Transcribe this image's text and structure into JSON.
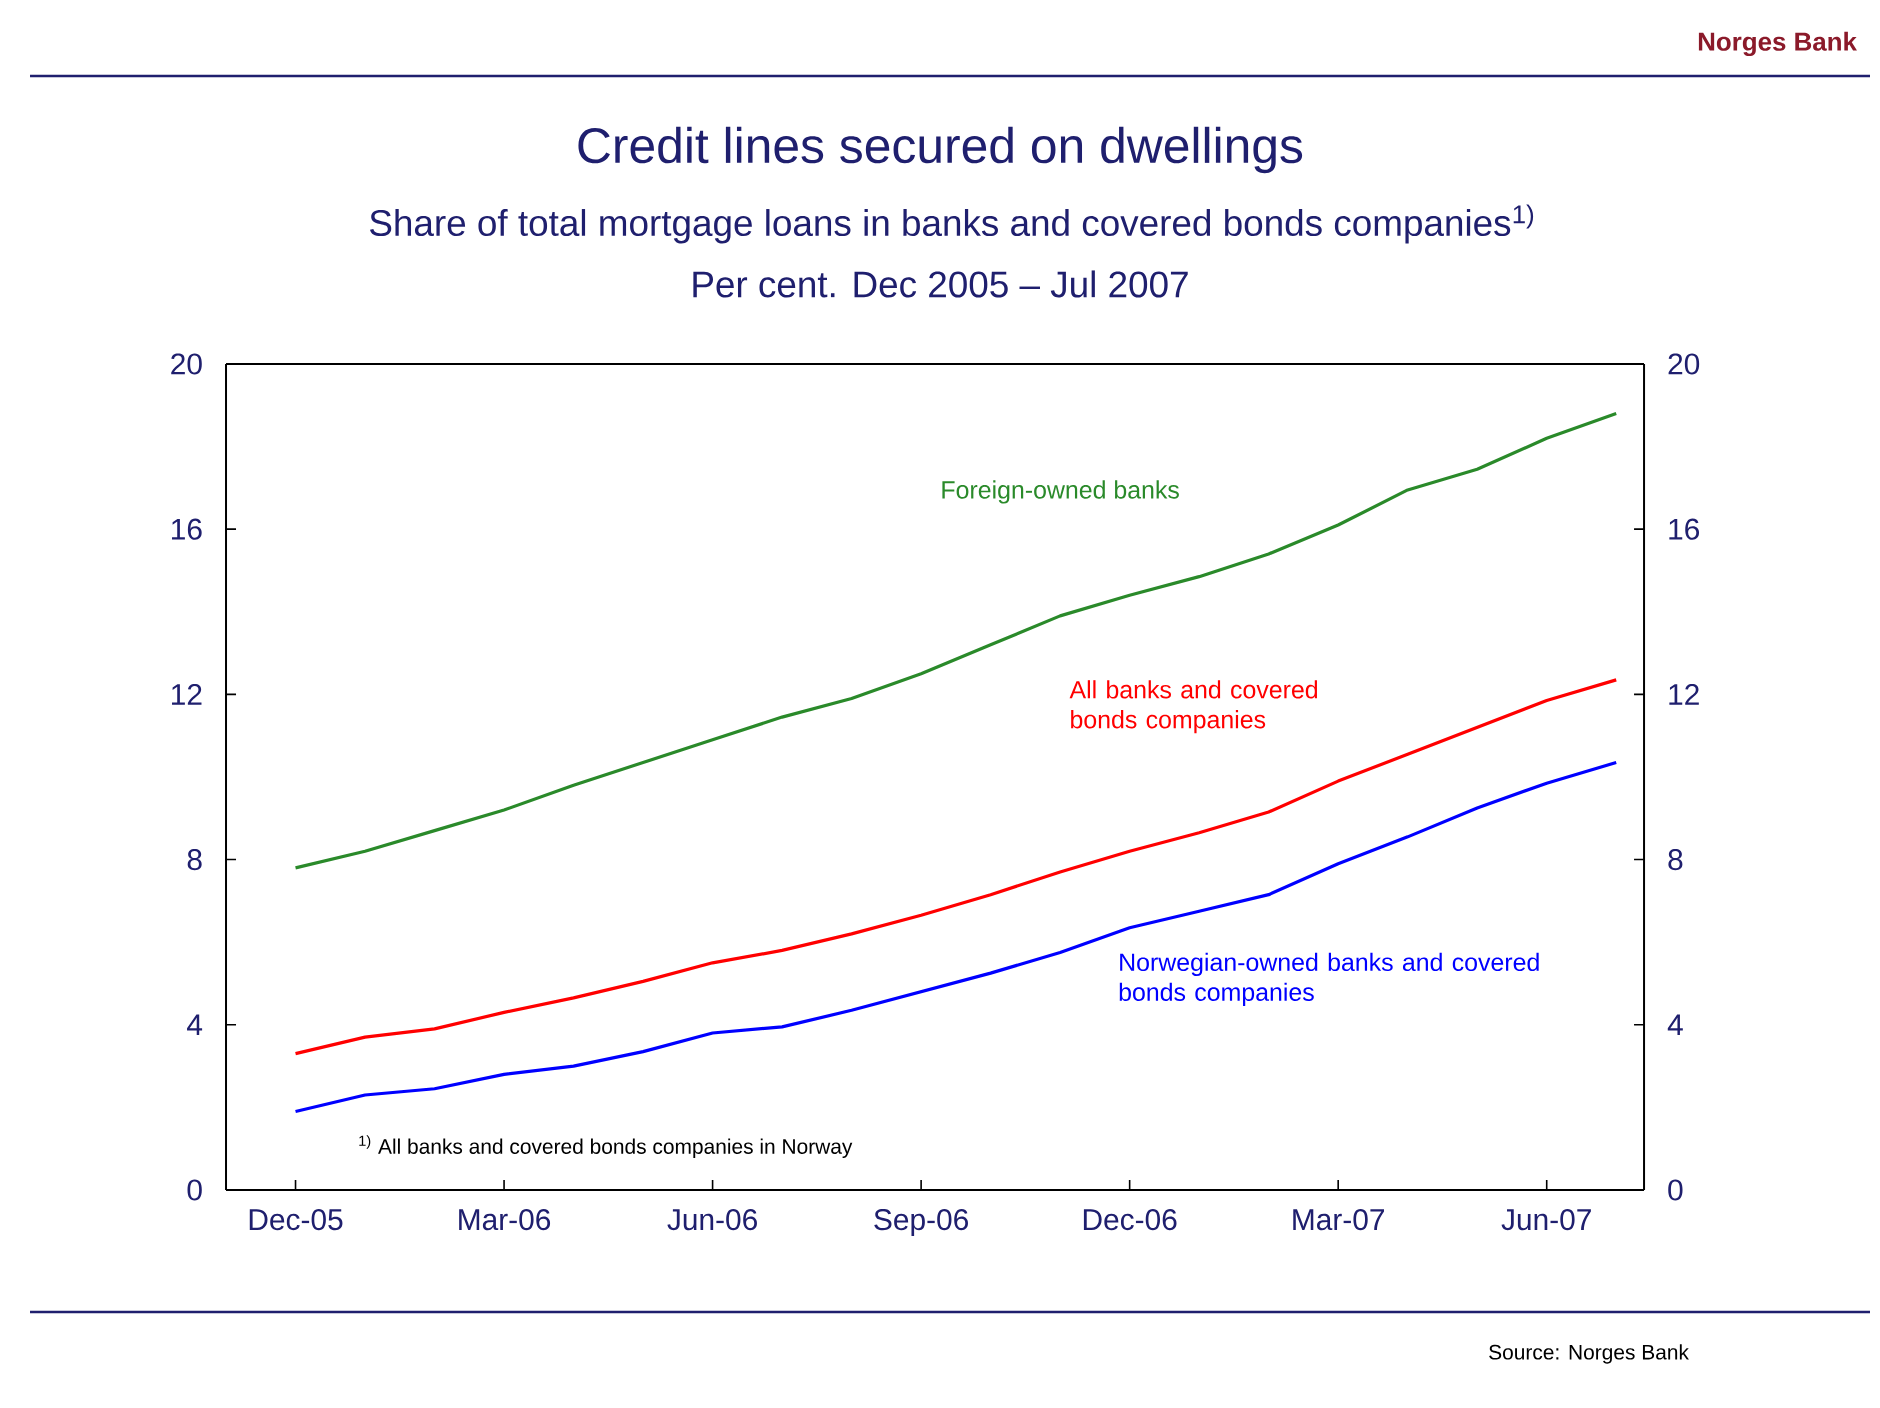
{
  "chart_data": {
    "type": "line",
    "title": "Credit lines secured on dwellings",
    "subtitle": "Share of total mortgage loans in banks and covered bonds companies$^{1)}$",
    "categories": [
      "Dec-05",
      null,
      null,
      "Mar-06",
      null,
      null,
      "Jun-06",
      null,
      null,
      "Sep-06",
      null,
      null,
      "Dec-06",
      null,
      null,
      "Mar-07",
      null,
      null,
      "Jun-07",
      null
    ],
    "series": [
      {
        "name": "Foreign-owned banks",
        "color": "#2a8a2a",
        "values": [
          7.8,
          8.2,
          8.7,
          9.2,
          9.8,
          10.35,
          10.9,
          11.45,
          11.9,
          12.5,
          13.2,
          13.9,
          14.4,
          14.85,
          15.4,
          16.1,
          16.95,
          17.45,
          18.2,
          18.8
        ]
      },
      {
        "name": "All banks and covered bonds companies",
        "color": "#ff0000",
        "values": [
          3.3,
          3.7,
          3.9,
          4.3,
          4.65,
          5.05,
          5.5,
          5.8,
          6.2,
          6.65,
          7.15,
          7.7,
          8.2,
          8.65,
          9.15,
          9.9,
          10.55,
          11.2,
          11.85,
          12.35
        ]
      },
      {
        "name": "Norwegian-owned banks and covered bonds companies",
        "color": "#0000ff",
        "values": [
          1.9,
          2.3,
          2.45,
          2.8,
          3.0,
          3.35,
          3.8,
          3.95,
          4.35,
          4.8,
          5.25,
          5.75,
          6.35,
          6.75,
          7.15,
          7.9,
          8.55,
          9.25,
          9.85,
          10.35
        ]
      }
    ],
    "ylim": [
      0,
      20
    ],
    "yticks": [
      0,
      4,
      8,
      12,
      16,
      20
    ],
    "y2lim": [
      0,
      20
    ],
    "y2ticks": [
      0,
      4,
      8,
      12,
      16,
      20
    ],
    "annotations": [
      "Norges Bank",
      "Per cent. Dec 2005 – Jul 2007",
      "$^{1)}$ All banks and covered bonds companies in Norway",
      "Source: Norges Bank"
    ]
  }
}
